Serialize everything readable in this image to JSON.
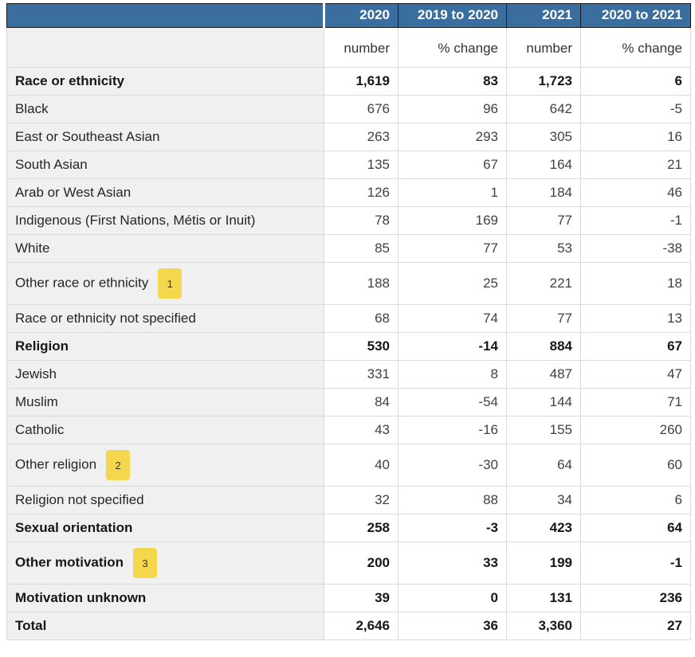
{
  "chart_data": {
    "type": "table",
    "column_groups": [
      "2020",
      "2019 to 2020",
      "2021",
      "2020 to 2021"
    ],
    "column_units": [
      "number",
      "% change",
      "number",
      "% change"
    ],
    "rows": [
      {
        "label": "Race or ethnicity",
        "bold": true,
        "footnote": null,
        "values": [
          "1,619",
          "83",
          "1,723",
          "6"
        ]
      },
      {
        "label": "Black",
        "bold": false,
        "footnote": null,
        "values": [
          "676",
          "96",
          "642",
          "-5"
        ]
      },
      {
        "label": "East or Southeast Asian",
        "bold": false,
        "footnote": null,
        "values": [
          "263",
          "293",
          "305",
          "16"
        ]
      },
      {
        "label": "South Asian",
        "bold": false,
        "footnote": null,
        "values": [
          "135",
          "67",
          "164",
          "21"
        ]
      },
      {
        "label": "Arab or West Asian",
        "bold": false,
        "footnote": null,
        "values": [
          "126",
          "1",
          "184",
          "46"
        ]
      },
      {
        "label": "Indigenous (First Nations, Métis or Inuit)",
        "bold": false,
        "footnote": null,
        "values": [
          "78",
          "169",
          "77",
          "-1"
        ]
      },
      {
        "label": "White",
        "bold": false,
        "footnote": null,
        "values": [
          "85",
          "77",
          "53",
          "-38"
        ]
      },
      {
        "label": "Other race or ethnicity",
        "bold": false,
        "footnote": "1",
        "values": [
          "188",
          "25",
          "221",
          "18"
        ]
      },
      {
        "label": "Race or ethnicity not specified",
        "bold": false,
        "footnote": null,
        "values": [
          "68",
          "74",
          "77",
          "13"
        ]
      },
      {
        "label": "Religion",
        "bold": true,
        "footnote": null,
        "values": [
          "530",
          "-14",
          "884",
          "67"
        ]
      },
      {
        "label": "Jewish",
        "bold": false,
        "footnote": null,
        "values": [
          "331",
          "8",
          "487",
          "47"
        ]
      },
      {
        "label": "Muslim",
        "bold": false,
        "footnote": null,
        "values": [
          "84",
          "-54",
          "144",
          "71"
        ]
      },
      {
        "label": "Catholic",
        "bold": false,
        "footnote": null,
        "values": [
          "43",
          "-16",
          "155",
          "260"
        ]
      },
      {
        "label": "Other religion",
        "bold": false,
        "footnote": "2",
        "values": [
          "40",
          "-30",
          "64",
          "60"
        ]
      },
      {
        "label": "Religion not specified",
        "bold": false,
        "footnote": null,
        "values": [
          "32",
          "88",
          "34",
          "6"
        ]
      },
      {
        "label": "Sexual orientation",
        "bold": true,
        "footnote": null,
        "values": [
          "258",
          "-3",
          "423",
          "64"
        ]
      },
      {
        "label": "Other motivation",
        "bold": true,
        "footnote": "3",
        "values": [
          "200",
          "33",
          "199",
          "-1"
        ]
      },
      {
        "label": "Motivation unknown",
        "bold": true,
        "footnote": null,
        "values": [
          "39",
          "0",
          "131",
          "236"
        ]
      },
      {
        "label": "Total",
        "bold": true,
        "footnote": null,
        "values": [
          "2,646",
          "36",
          "3,360",
          "27"
        ]
      }
    ]
  },
  "colors": {
    "header_bg": "#3A6E9E",
    "header_text": "#FFFFFF",
    "label_column_bg": "#F0F0F1",
    "footnote_badge_bg": "#F5D74E",
    "header_border": "#1B1B1B",
    "body_border": "#DADADA"
  }
}
